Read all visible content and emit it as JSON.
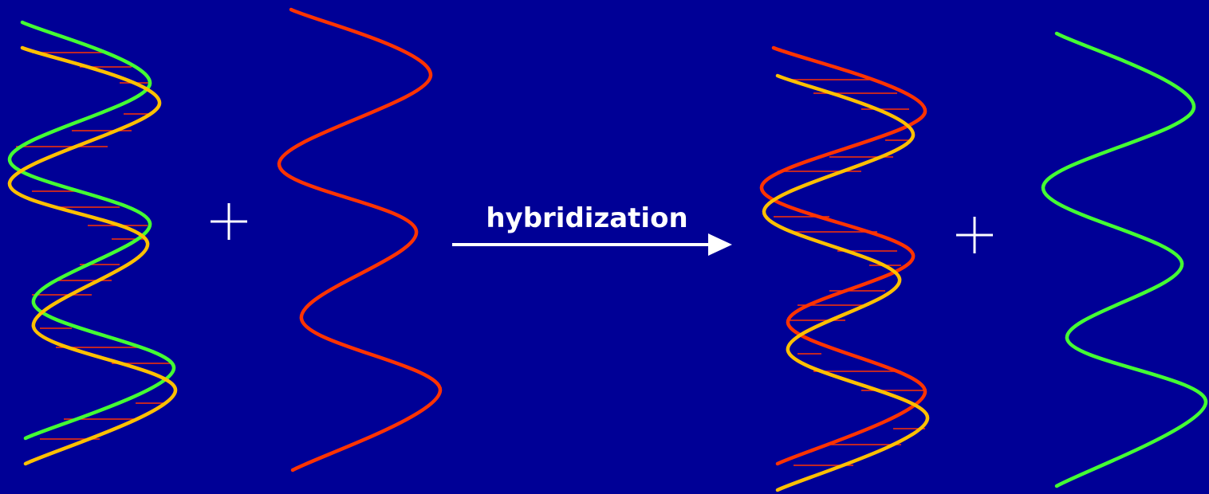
{
  "label": "hybridization"
}
